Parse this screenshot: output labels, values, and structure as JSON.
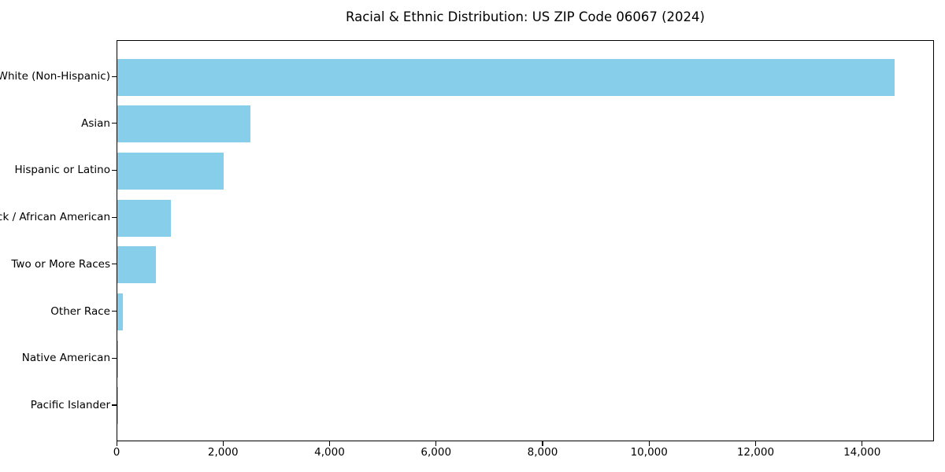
{
  "chart_data": {
    "type": "bar",
    "orientation": "horizontal",
    "title": "Racial & Ethnic Distribution: US ZIP Code 06067 (2024)",
    "categories": [
      "White (Non-Hispanic)",
      "Asian",
      "Hispanic or Latino",
      "Black / African American",
      "Two or More Races",
      "Other Race",
      "Native American",
      "Pacific Islander"
    ],
    "values": [
      14600,
      2500,
      2000,
      1000,
      720,
      110,
      15,
      5
    ],
    "xlabel": "",
    "ylabel": "",
    "xlim": [
      0,
      15350
    ],
    "xticks": [
      0,
      2000,
      4000,
      6000,
      8000,
      10000,
      12000,
      14000
    ],
    "xtick_labels": [
      "0",
      "2,000",
      "4,000",
      "6,000",
      "8,000",
      "10,000",
      "12,000",
      "14,000"
    ],
    "grid": false,
    "legend": "none",
    "bar_color": "#87ceeb",
    "axis_color": "#000000",
    "text_color": "#000000",
    "background_color": "#ffffff"
  }
}
